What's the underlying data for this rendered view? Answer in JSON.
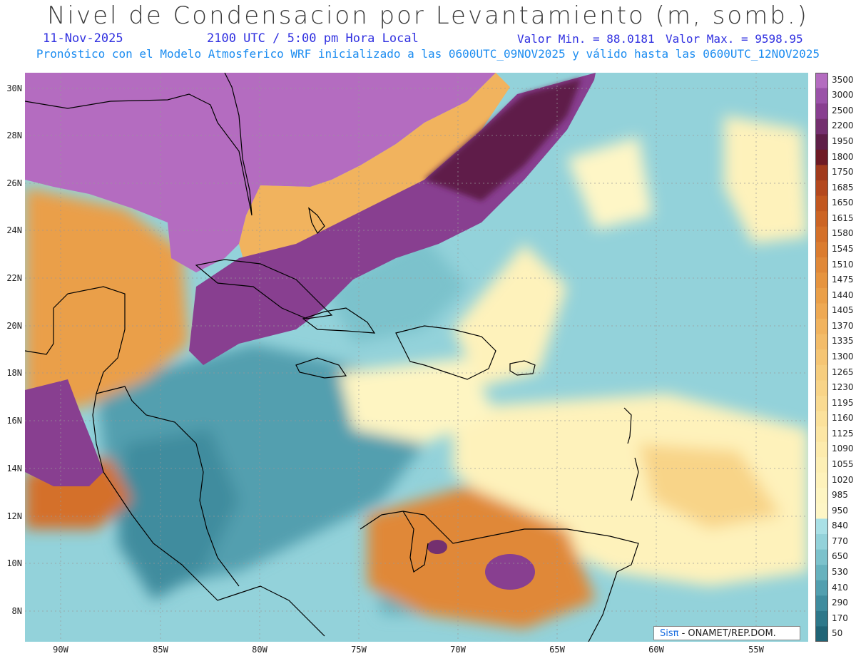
{
  "title": "Nivel de Condensacion por Levantamiento (m, somb.)",
  "date": "11-Nov-2025",
  "time": "2100 UTC / 5:00 pm Hora Local",
  "vmin": "Valor Min. = 88.0181",
  "vmax": "Valor Max. = 9598.95",
  "model": "Pronóstico con el Modelo Atmosferico WRF inicializado a las 0600UTC_09NOV2025 y válido hasta las  0600UTC_12NOV2025",
  "lat_labels": [
    "30N",
    "28N",
    "26N",
    "24N",
    "22N",
    "20N",
    "18N",
    "16N",
    "14N",
    "12N",
    "10N",
    "8N"
  ],
  "lon_labels": [
    "90W",
    "85W",
    "80W",
    "75W",
    "70W",
    "65W",
    "60W",
    "55W"
  ],
  "colorbar": {
    "labels": [
      "3500",
      "3000",
      "2500",
      "2200",
      "1950",
      "1800",
      "1750",
      "1685",
      "1650",
      "1615",
      "1580",
      "1545",
      "1510",
      "1475",
      "1440",
      "1405",
      "1370",
      "1335",
      "1300",
      "1265",
      "1230",
      "1195",
      "1160",
      "1125",
      "1090",
      "1055",
      "1020",
      "985",
      "950",
      "840",
      "770",
      "650",
      "530",
      "410",
      "290",
      "170",
      "50"
    ],
    "colors": [
      "#b46cc0",
      "#9a52a8",
      "#883f90",
      "#74306f",
      "#5e1f48",
      "#6e1a24",
      "#a13a1c",
      "#b4481e",
      "#c2571f",
      "#cc6424",
      "#d47029",
      "#db7c2f",
      "#e08838",
      "#e6943f",
      "#ea9f48",
      "#eea953",
      "#f1b35e",
      "#f3bc69",
      "#f5c574",
      "#f6cd7e",
      "#f8d488",
      "#f9da91",
      "#fbe19b",
      "#fce6a4",
      "#fdebad",
      "#fdefb5",
      "#fef2bb",
      "#fef5c2",
      "#fef6c6",
      "#a9e0e6",
      "#93d2da",
      "#7cc2cc",
      "#67b2be",
      "#529faf",
      "#3f8c9e",
      "#2e788a",
      "#206476"
    ]
  },
  "credit_logo": "Sisπ",
  "credit_text": "- ONAMET/REP.DOM."
}
